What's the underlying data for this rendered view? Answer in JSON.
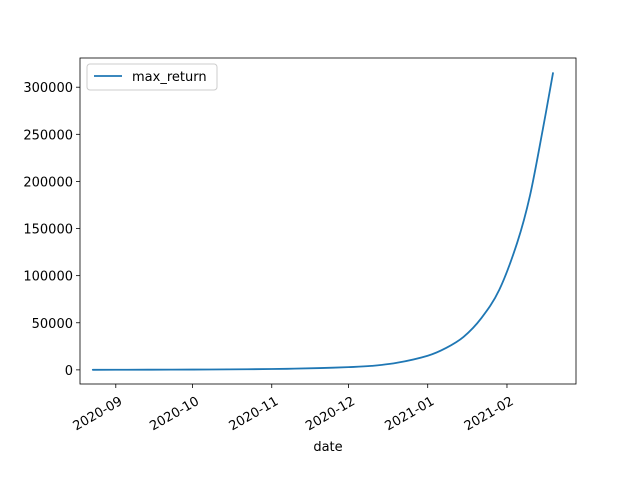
{
  "chart_data": {
    "type": "line",
    "xlabel": "date",
    "ylabel": "",
    "title": "",
    "legend": "top-left",
    "grid": false,
    "xlim": [
      "2020-08-18",
      "2021-02-28"
    ],
    "ylim": [
      -15000,
      331000
    ],
    "x_ticks": [
      "2020-09-01",
      "2020-10-01",
      "2020-11-01",
      "2020-12-01",
      "2021-01-01",
      "2021-02-01"
    ],
    "x_tick_labels": [
      "2020-09",
      "2020-10",
      "2020-11",
      "2020-12",
      "2021-01",
      "2021-02"
    ],
    "y_ticks": [
      0,
      50000,
      100000,
      150000,
      200000,
      250000,
      300000
    ],
    "y_tick_labels": [
      "0",
      "50000",
      "100000",
      "150000",
      "200000",
      "250000",
      "300000"
    ],
    "series": [
      {
        "name": "max_return",
        "color": "#1f77b4",
        "x": [
          "2020-08-23",
          "2020-09-01",
          "2020-09-15",
          "2020-10-01",
          "2020-10-15",
          "2020-11-01",
          "2020-11-10",
          "2020-11-20",
          "2020-12-01",
          "2020-12-10",
          "2020-12-20",
          "2021-01-01",
          "2021-01-08",
          "2021-01-15",
          "2021-01-22",
          "2021-01-29",
          "2021-02-05",
          "2021-02-10",
          "2021-02-15",
          "2021-02-19"
        ],
        "values": [
          60,
          100,
          180,
          310,
          500,
          900,
          1300,
          1900,
          2900,
          4200,
          7500,
          15000,
          23000,
          35000,
          55000,
          85000,
          135000,
          185000,
          255000,
          315000
        ]
      }
    ]
  }
}
